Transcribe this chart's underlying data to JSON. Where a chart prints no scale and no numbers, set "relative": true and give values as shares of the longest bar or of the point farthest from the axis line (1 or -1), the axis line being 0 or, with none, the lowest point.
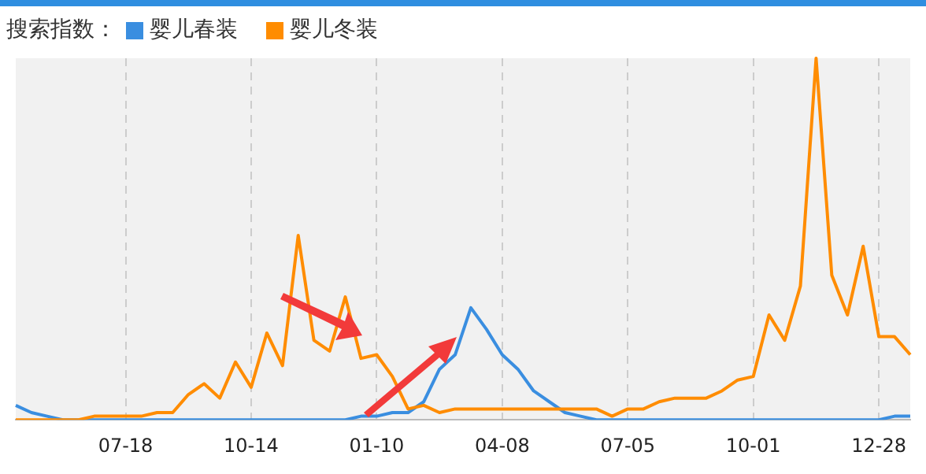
{
  "chart_data": {
    "type": "line",
    "relative": true,
    "legend_title": "搜索指数：",
    "legend": "top left",
    "grid": "x",
    "marker": "none",
    "line_style": "solid",
    "categories": [
      null,
      null,
      null,
      null,
      null,
      null,
      null,
      "07-18",
      null,
      null,
      null,
      null,
      null,
      null,
      null,
      "10-14",
      null,
      null,
      null,
      null,
      null,
      null,
      null,
      "01-10",
      null,
      null,
      null,
      null,
      null,
      null,
      null,
      "04-08",
      null,
      null,
      null,
      null,
      null,
      null,
      null,
      "07-05",
      null,
      null,
      null,
      null,
      null,
      null,
      null,
      "10-01",
      null,
      null,
      null,
      null,
      null,
      null,
      null,
      "12-28",
      null,
      null
    ],
    "series": [
      {
        "name": "婴儿春装",
        "color": "#3a8ee0",
        "values": [
          0.04,
          0.02,
          0.01,
          0,
          0,
          0,
          0,
          0,
          0,
          0,
          0,
          0,
          0,
          0,
          0,
          0,
          0,
          0,
          0,
          0,
          0,
          0,
          0.01,
          0.01,
          0.02,
          0.02,
          0.05,
          0.14,
          0.18,
          0.31,
          0.25,
          0.18,
          0.14,
          0.08,
          0.05,
          0.02,
          0.01,
          0,
          0,
          0,
          0,
          0,
          0,
          0,
          0,
          0,
          0,
          0,
          0,
          0,
          0,
          0,
          0,
          0,
          0,
          0,
          0.01,
          0.01
        ]
      },
      {
        "name": "婴儿冬装",
        "color": "#ff8c00",
        "values": [
          0,
          0,
          0,
          0,
          0,
          0.01,
          0.01,
          0.01,
          0.01,
          0.02,
          0.02,
          0.07,
          0.1,
          0.06,
          0.16,
          0.09,
          0.24,
          0.15,
          0.51,
          0.22,
          0.19,
          0.34,
          0.17,
          0.18,
          0.12,
          0.03,
          0.04,
          0.02,
          0.03,
          0.03,
          0.03,
          0.03,
          0.03,
          0.03,
          0.03,
          0.03,
          0.03,
          0.03,
          0.01,
          0.03,
          0.03,
          0.05,
          0.06,
          0.06,
          0.06,
          0.08,
          0.11,
          0.12,
          0.29,
          0.22,
          0.37,
          1,
          0.4,
          0.29,
          0.48,
          0.23,
          0.23,
          0.18
        ]
      }
    ]
  }
}
